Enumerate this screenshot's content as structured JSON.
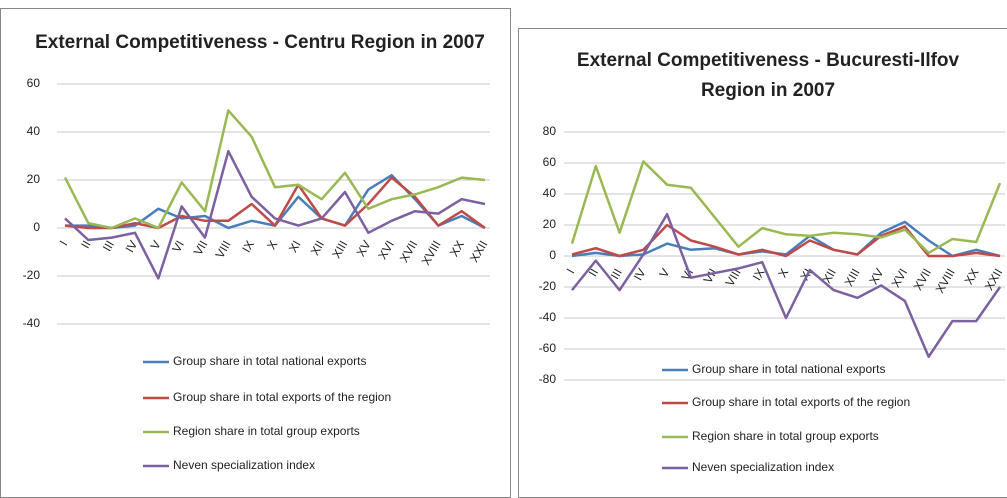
{
  "chart_data": [
    {
      "type": "line",
      "title": "External Competitiveness - Centru Region in 2007",
      "categories": [
        "I",
        "II",
        "III",
        "IV",
        "V",
        "VI",
        "VII",
        "VIII",
        "IX",
        "X",
        "XI",
        "XII",
        "XIII",
        "XV",
        "XVI",
        "XVII",
        "XVIII",
        "XX",
        "XXII"
      ],
      "ylim": [
        -40,
        60
      ],
      "yticks": [
        -40,
        -20,
        0,
        20,
        40,
        60
      ],
      "grid": true,
      "series": [
        {
          "name": "Group share in total national exports",
          "color": "#4a7ebb",
          "values": [
            1,
            1,
            0,
            1,
            8,
            4,
            5,
            0,
            3,
            1,
            13,
            4,
            1,
            16,
            22,
            12,
            1,
            5,
            0
          ]
        },
        {
          "name": "Group share in total exports of the region",
          "color": "#be4b48",
          "values": [
            1,
            0,
            0,
            2,
            0,
            5,
            3,
            3,
            10,
            1,
            18,
            4,
            1,
            10,
            21,
            13,
            1,
            7,
            0
          ]
        },
        {
          "name": "Region share in total group exports",
          "color": "#98b954",
          "values": [
            21,
            2,
            0,
            4,
            0,
            19,
            7,
            49,
            38,
            17,
            18,
            12,
            23,
            8,
            12,
            14,
            17,
            21,
            20
          ]
        },
        {
          "name": "Neven specialization index",
          "color": "#7d60a0",
          "values": [
            4,
            -5,
            -4,
            -2,
            -21,
            9,
            -4,
            32,
            13,
            4,
            1,
            4,
            15,
            -2,
            3,
            7,
            6,
            12,
            10
          ]
        }
      ]
    },
    {
      "type": "line",
      "title": "External Competitiveness - Bucuresti-Ilfov Region in 2007",
      "categories": [
        "I",
        "II",
        "III",
        "IV",
        "V",
        "VI",
        "VII",
        "VIII",
        "IX",
        "X",
        "XI",
        "XII",
        "XIII",
        "XV",
        "XVI",
        "XVII",
        "XVIII",
        "XX",
        "XXII"
      ],
      "ylim": [
        -80,
        80
      ],
      "yticks": [
        -80,
        -60,
        -40,
        -20,
        0,
        20,
        40,
        60,
        80
      ],
      "grid": true,
      "series": [
        {
          "name": "Group share in total national exports",
          "color": "#4a7ebb",
          "values": [
            0,
            2,
            0,
            1,
            8,
            4,
            5,
            1,
            3,
            1,
            13,
            4,
            1,
            15,
            22,
            10,
            0,
            4,
            0
          ]
        },
        {
          "name": "Group share in total exports of the region",
          "color": "#be4b48",
          "values": [
            1,
            5,
            0,
            4,
            20,
            10,
            6,
            1,
            4,
            0,
            10,
            4,
            1,
            13,
            19,
            0,
            0,
            2,
            0
          ]
        },
        {
          "name": "Region share in total group exports",
          "color": "#98b954",
          "values": [
            8,
            58,
            15,
            61,
            46,
            44,
            25,
            6,
            18,
            14,
            13,
            15,
            14,
            12,
            17,
            2,
            11,
            9,
            47
          ]
        },
        {
          "name": "Neven specialization index",
          "color": "#7d60a0",
          "values": [
            -22,
            -3,
            -22,
            1,
            27,
            -14,
            -11,
            -8,
            -4,
            -40,
            -9,
            -22,
            -27,
            -19,
            -29,
            -65,
            -42,
            -42,
            -20
          ]
        }
      ]
    }
  ]
}
